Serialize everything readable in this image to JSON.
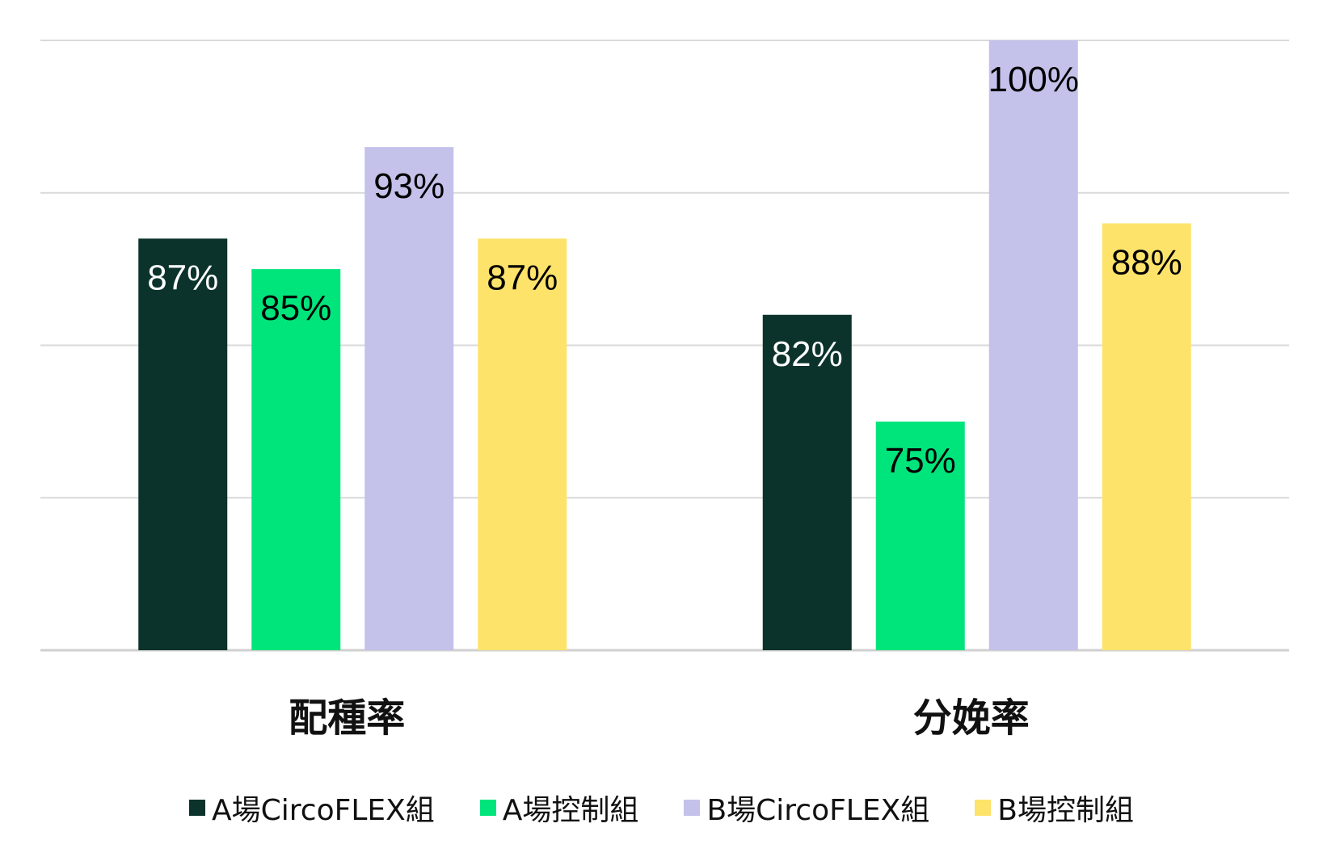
{
  "chart_data": {
    "type": "bar",
    "categories": [
      "配種率",
      "分娩率"
    ],
    "series": [
      {
        "name": "A場CircoFLEX組",
        "values": [
          87,
          82
        ],
        "labels": [
          "87%",
          "82%"
        ],
        "color": "#0b332c",
        "label_color": "#ffffff"
      },
      {
        "name": "A場控制組",
        "values": [
          85,
          75
        ],
        "labels": [
          "85%",
          "75%"
        ],
        "color": "#00e47c",
        "label_color": "#000000"
      },
      {
        "name": "B場CircoFLEX組",
        "values": [
          93,
          100
        ],
        "labels": [
          "93%",
          "100%"
        ],
        "color": "#c4c1ea",
        "label_color": "#000000"
      },
      {
        "name": "B場控制組",
        "values": [
          87,
          88
        ],
        "labels": [
          "87%",
          "88%"
        ],
        "color": "#fee36b",
        "label_color": "#000000"
      }
    ],
    "ylim": [
      60,
      100
    ],
    "grid": true,
    "legend_position": "bottom"
  }
}
